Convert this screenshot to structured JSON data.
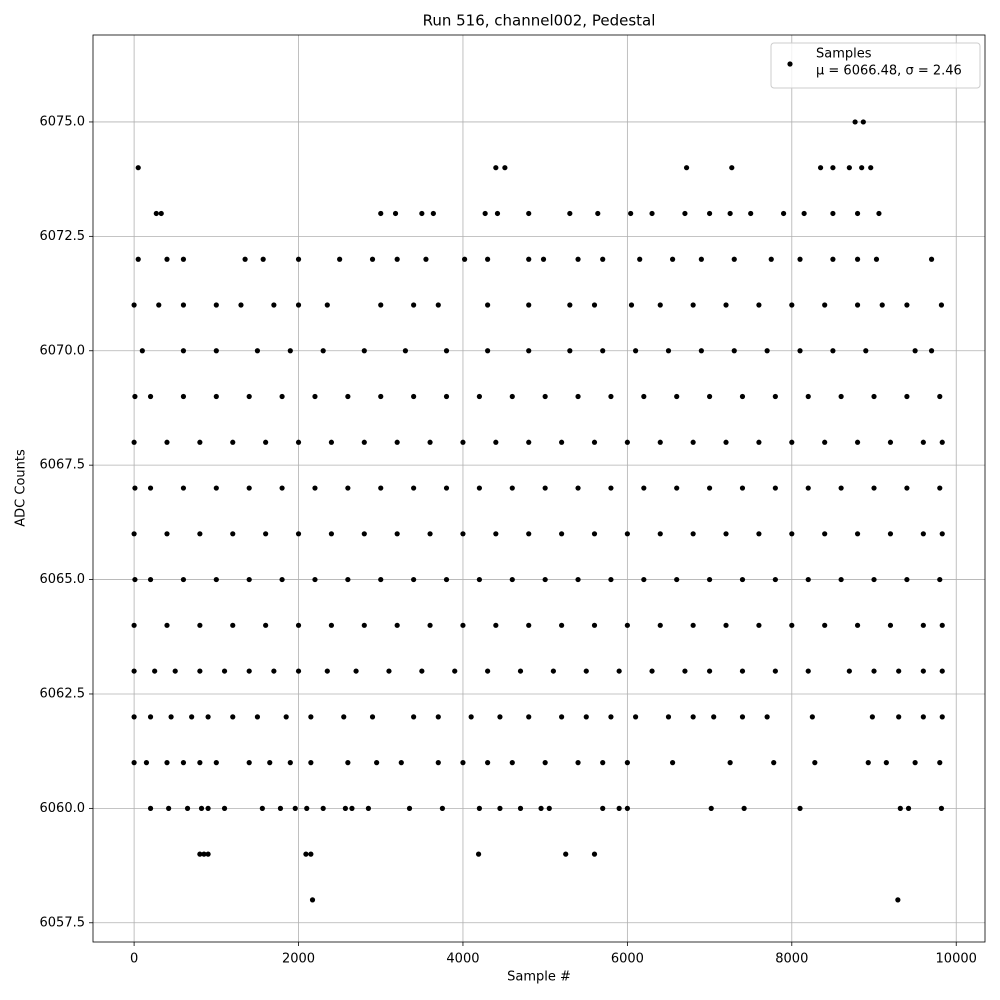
{
  "chart_data": {
    "type": "scatter",
    "title": "Run 516, channel002, Pedestal",
    "x_label": "Sample #",
    "y_label": "ADC Counts",
    "xlim": [
      -500,
      10350
    ],
    "ylim": [
      6057.08,
      6076.9
    ],
    "xticks": [
      0,
      2000,
      4000,
      6000,
      8000,
      10000
    ],
    "yticks": [
      6057.5,
      {
        "value": 6060,
        "label": "6060.0"
      },
      6062.5,
      {
        "value": 6065,
        "label": "6065.0"
      },
      6067.5,
      {
        "value": 6070,
        "label": "6070.0"
      },
      6072.5,
      {
        "value": 6075,
        "label": "6075.0"
      }
    ],
    "grid": true,
    "legend_position": "upper right",
    "legend_stats": "μ = 6066.48, σ = 2.46",
    "series": [
      {
        "name": "Samples",
        "color": "#000000",
        "x": [
          2170,
          9290,
          800,
          850,
          900,
          2090,
          2150,
          4190,
          5250,
          5600,
          200,
          420,
          650,
          820,
          900,
          1100,
          1560,
          1780,
          1960,
          2100,
          2300,
          2570,
          2650,
          2850,
          3350,
          3750,
          4200,
          4450,
          4700,
          4950,
          5050,
          5700,
          5900,
          6000,
          7020,
          7420,
          8100,
          9320,
          9420,
          9820,
          0,
          150,
          400,
          600,
          800,
          1000,
          1400,
          1650,
          1900,
          2150,
          2600,
          2950,
          3250,
          3700,
          4000,
          4300,
          4600,
          5000,
          5400,
          5700,
          6000,
          6550,
          7250,
          7780,
          8280,
          8930,
          9150,
          9500,
          9800,
          0,
          200,
          450,
          700,
          900,
          1200,
          1500,
          1850,
          2150,
          2550,
          2900,
          3400,
          3700,
          4100,
          4450,
          4800,
          5200,
          5500,
          5800,
          6100,
          6500,
          6800,
          7050,
          7400,
          7700,
          8250,
          8980,
          9300,
          9600,
          9830,
          0,
          250,
          500,
          800,
          1100,
          1400,
          1700,
          2000,
          2350,
          2700,
          3100,
          3500,
          3900,
          4300,
          4700,
          5100,
          5500,
          5900,
          6300,
          6700,
          7000,
          7400,
          7800,
          8200,
          8700,
          9000,
          9300,
          9600,
          9830,
          0,
          400,
          800,
          1200,
          1600,
          2000,
          2400,
          2800,
          3200,
          3600,
          4000,
          4400,
          4800,
          5200,
          5600,
          6000,
          6400,
          6800,
          7200,
          7600,
          8000,
          8400,
          8800,
          9200,
          9600,
          9830,
          10,
          200,
          600,
          1000,
          1400,
          1800,
          2200,
          2600,
          3000,
          3400,
          3800,
          4200,
          4600,
          5000,
          5400,
          5800,
          6200,
          6600,
          7000,
          7400,
          7800,
          8200,
          8600,
          9000,
          9400,
          9800,
          0,
          400,
          800,
          1200,
          1600,
          2000,
          2400,
          2800,
          3200,
          3600,
          4000,
          4400,
          4800,
          5200,
          5600,
          6000,
          6400,
          6800,
          7200,
          7600,
          8000,
          8400,
          8800,
          9200,
          9600,
          9830,
          10,
          200,
          600,
          1000,
          1400,
          1800,
          2200,
          2600,
          3000,
          3400,
          3800,
          4200,
          4600,
          5000,
          5400,
          5800,
          6200,
          6600,
          7000,
          7400,
          7800,
          8200,
          8600,
          9000,
          9400,
          9800,
          0,
          400,
          800,
          1200,
          1600,
          2000,
          2400,
          2800,
          3200,
          3600,
          4000,
          4400,
          4800,
          5200,
          5600,
          6000,
          6400,
          6800,
          7200,
          7600,
          8000,
          8400,
          8800,
          9200,
          9600,
          9830,
          10,
          200,
          600,
          1000,
          1400,
          1800,
          2200,
          2600,
          3000,
          3400,
          3800,
          4200,
          4600,
          5000,
          5400,
          5800,
          6200,
          6600,
          7000,
          7400,
          7800,
          8200,
          8600,
          9000,
          9400,
          9800,
          100,
          600,
          1000,
          1500,
          1900,
          2300,
          2800,
          3300,
          3800,
          4300,
          4800,
          5300,
          5700,
          6100,
          6500,
          6900,
          7300,
          7700,
          8100,
          8500,
          8900,
          9500,
          9700,
          0,
          300,
          600,
          1000,
          1300,
          1700,
          2000,
          2350,
          3000,
          3400,
          3700,
          4300,
          4800,
          5300,
          5600,
          6050,
          6400,
          6800,
          7200,
          7600,
          8000,
          8400,
          8800,
          9100,
          9400,
          9820,
          50,
          400,
          600,
          1350,
          1570,
          2000,
          2500,
          2900,
          3200,
          3550,
          4020,
          4300,
          4800,
          4980,
          5400,
          5700,
          6150,
          6550,
          6900,
          7300,
          7750,
          8100,
          8500,
          8800,
          9030,
          9700,
          270,
          330,
          3000,
          3180,
          3500,
          3640,
          4270,
          4420,
          4800,
          5300,
          5640,
          6040,
          6300,
          6700,
          7000,
          7250,
          7500,
          7900,
          8150,
          8500,
          8800,
          9060,
          50,
          4400,
          4510,
          6720,
          7270,
          8350,
          8500,
          8700,
          8850,
          8960,
          8770,
          8870
        ],
        "values": [
          6058,
          6058,
          6059,
          6059,
          6059,
          6059,
          6059,
          6059,
          6059,
          6059,
          6060,
          6060,
          6060,
          6060,
          6060,
          6060,
          6060,
          6060,
          6060,
          6060,
          6060,
          6060,
          6060,
          6060,
          6060,
          6060,
          6060,
          6060,
          6060,
          6060,
          6060,
          6060,
          6060,
          6060,
          6060,
          6060,
          6060,
          6060,
          6060,
          6060,
          6061,
          6061,
          6061,
          6061,
          6061,
          6061,
          6061,
          6061,
          6061,
          6061,
          6061,
          6061,
          6061,
          6061,
          6061,
          6061,
          6061,
          6061,
          6061,
          6061,
          6061,
          6061,
          6061,
          6061,
          6061,
          6061,
          6061,
          6061,
          6061,
          6062,
          6062,
          6062,
          6062,
          6062,
          6062,
          6062,
          6062,
          6062,
          6062,
          6062,
          6062,
          6062,
          6062,
          6062,
          6062,
          6062,
          6062,
          6062,
          6062,
          6062,
          6062,
          6062,
          6062,
          6062,
          6062,
          6062,
          6062,
          6062,
          6062,
          6063,
          6063,
          6063,
          6063,
          6063,
          6063,
          6063,
          6063,
          6063,
          6063,
          6063,
          6063,
          6063,
          6063,
          6063,
          6063,
          6063,
          6063,
          6063,
          6063,
          6063,
          6063,
          6063,
          6063,
          6063,
          6063,
          6063,
          6063,
          6063,
          6064,
          6064,
          6064,
          6064,
          6064,
          6064,
          6064,
          6064,
          6064,
          6064,
          6064,
          6064,
          6064,
          6064,
          6064,
          6064,
          6064,
          6064,
          6064,
          6064,
          6064,
          6064,
          6064,
          6064,
          6064,
          6064,
          6065,
          6065,
          6065,
          6065,
          6065,
          6065,
          6065,
          6065,
          6065,
          6065,
          6065,
          6065,
          6065,
          6065,
          6065,
          6065,
          6065,
          6065,
          6065,
          6065,
          6065,
          6065,
          6065,
          6065,
          6065,
          6065,
          6066,
          6066,
          6066,
          6066,
          6066,
          6066,
          6066,
          6066,
          6066,
          6066,
          6066,
          6066,
          6066,
          6066,
          6066,
          6066,
          6066,
          6066,
          6066,
          6066,
          6066,
          6066,
          6066,
          6066,
          6066,
          6066,
          6067,
          6067,
          6067,
          6067,
          6067,
          6067,
          6067,
          6067,
          6067,
          6067,
          6067,
          6067,
          6067,
          6067,
          6067,
          6067,
          6067,
          6067,
          6067,
          6067,
          6067,
          6067,
          6067,
          6067,
          6067,
          6067,
          6068,
          6068,
          6068,
          6068,
          6068,
          6068,
          6068,
          6068,
          6068,
          6068,
          6068,
          6068,
          6068,
          6068,
          6068,
          6068,
          6068,
          6068,
          6068,
          6068,
          6068,
          6068,
          6068,
          6068,
          6068,
          6068,
          6069,
          6069,
          6069,
          6069,
          6069,
          6069,
          6069,
          6069,
          6069,
          6069,
          6069,
          6069,
          6069,
          6069,
          6069,
          6069,
          6069,
          6069,
          6069,
          6069,
          6069,
          6069,
          6069,
          6069,
          6069,
          6069,
          6070,
          6070,
          6070,
          6070,
          6070,
          6070,
          6070,
          6070,
          6070,
          6070,
          6070,
          6070,
          6070,
          6070,
          6070,
          6070,
          6070,
          6070,
          6070,
          6070,
          6070,
          6070,
          6070,
          6071,
          6071,
          6071,
          6071,
          6071,
          6071,
          6071,
          6071,
          6071,
          6071,
          6071,
          6071,
          6071,
          6071,
          6071,
          6071,
          6071,
          6071,
          6071,
          6071,
          6071,
          6071,
          6071,
          6071,
          6071,
          6071,
          6072,
          6072,
          6072,
          6072,
          6072,
          6072,
          6072,
          6072,
          6072,
          6072,
          6072,
          6072,
          6072,
          6072,
          6072,
          6072,
          6072,
          6072,
          6072,
          6072,
          6072,
          6072,
          6072,
          6072,
          6072,
          6072,
          6073,
          6073,
          6073,
          6073,
          6073,
          6073,
          6073,
          6073,
          6073,
          6073,
          6073,
          6073,
          6073,
          6073,
          6073,
          6073,
          6073,
          6073,
          6073,
          6073,
          6073,
          6073,
          6074,
          6074,
          6074,
          6074,
          6074,
          6074,
          6074,
          6074,
          6074,
          6074,
          6075,
          6075
        ]
      }
    ]
  }
}
